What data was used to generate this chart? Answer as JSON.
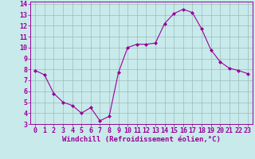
{
  "x": [
    0,
    1,
    2,
    3,
    4,
    5,
    6,
    7,
    8,
    9,
    10,
    11,
    12,
    13,
    14,
    15,
    16,
    17,
    18,
    19,
    20,
    21,
    22,
    23
  ],
  "y": [
    7.9,
    7.5,
    5.8,
    5.0,
    4.7,
    4.0,
    4.5,
    3.3,
    3.7,
    7.7,
    10.0,
    10.3,
    10.3,
    10.4,
    12.2,
    13.1,
    13.5,
    13.2,
    11.7,
    9.8,
    8.7,
    8.1,
    7.9,
    7.6
  ],
  "line_color": "#990099",
  "marker": "D",
  "marker_size": 2,
  "bg_color": "#c8eaea",
  "grid_color": "#99bbbb",
  "xlabel": "Windchill (Refroidissement éolien,°C)",
  "xlabel_color": "#990099",
  "xlabel_fontsize": 6.5,
  "tick_color": "#990099",
  "tick_fontsize": 6,
  "ylim": [
    3,
    14
  ],
  "xlim": [
    -0.5,
    23.5
  ],
  "yticks": [
    3,
    4,
    5,
    6,
    7,
    8,
    9,
    10,
    11,
    12,
    13,
    14
  ],
  "xticks": [
    0,
    1,
    2,
    3,
    4,
    5,
    6,
    7,
    8,
    9,
    10,
    11,
    12,
    13,
    14,
    15,
    16,
    17,
    18,
    19,
    20,
    21,
    22,
    23
  ]
}
